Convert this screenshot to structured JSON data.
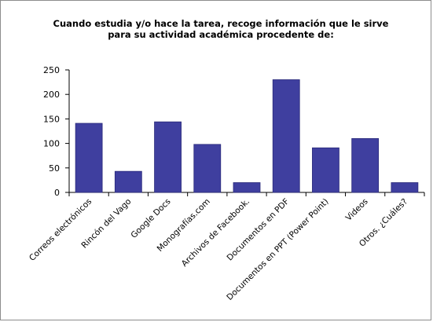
{
  "chart_data": {
    "type": "bar",
    "title_lines": [
      "Cuando estudia y/o hace la tarea, recoge información que le sirve",
      "para su actividad académica procedente de:"
    ],
    "categories": [
      "Correos  electrónicos",
      "Rincón del Vago",
      "Google Docs",
      "Monografías.com",
      "Archivos de Facebook.",
      "Documentos en PDF",
      "Documentos en PPT (Power Point)",
      "Videos",
      "Otros. ¿Cuáles?"
    ],
    "values": [
      141,
      43,
      144,
      98,
      20,
      230,
      91,
      110,
      20
    ],
    "yticks": [
      0,
      50,
      100,
      150,
      200,
      250
    ],
    "ylim": [
      0,
      250
    ],
    "xlabel": "",
    "ylabel": "",
    "grid": false,
    "legend": "none",
    "colors": {
      "bar": "#3f3f9f",
      "bar_edge": "#2a2a7a",
      "axis": "#000000"
    }
  }
}
